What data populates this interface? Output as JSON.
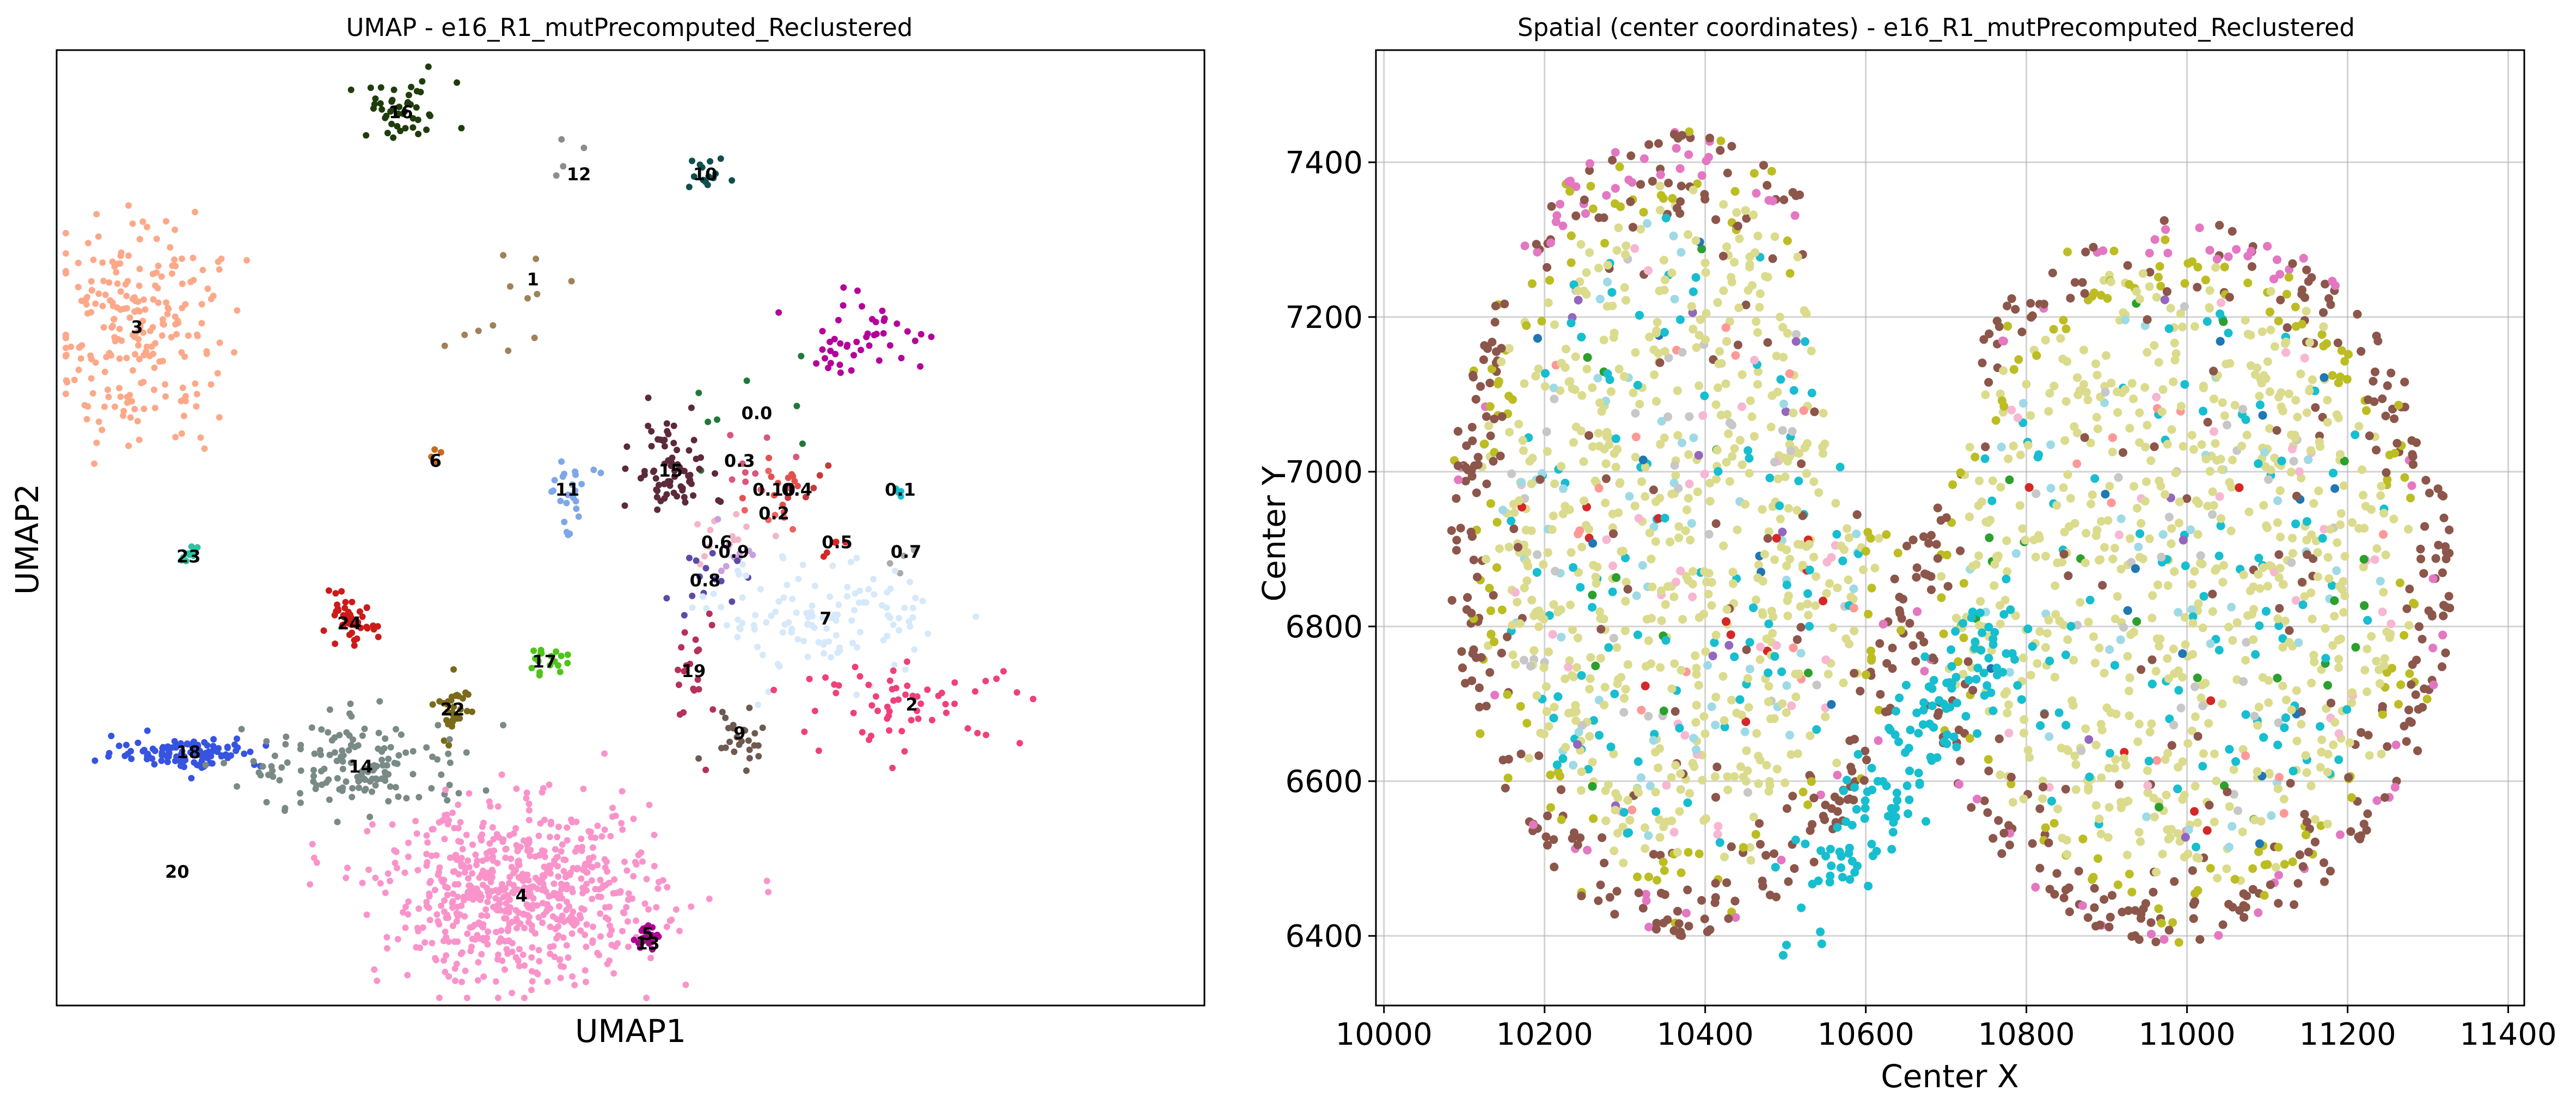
{
  "chart_data": [
    {
      "type": "scatter",
      "title": "UMAP - e16_R1_mutPrecomputed_Reclustered",
      "xlabel": "UMAP1",
      "ylabel": "UMAP2",
      "xlim": [
        0,
        100
      ],
      "ylim": [
        0,
        100
      ],
      "ticks_visible": false,
      "grid": false,
      "cluster_labels": [
        {
          "label": "16",
          "x": 30,
          "y": 93.5,
          "n": 45,
          "sx": 2.4,
          "sy": 1.6,
          "color": "#1f3d0c"
        },
        {
          "label": "12",
          "x": 45.5,
          "y": 87,
          "n": 4,
          "sx": 1.2,
          "sy": 3,
          "color": "#8c8c8c"
        },
        {
          "label": "10",
          "x": 56.5,
          "y": 87,
          "n": 14,
          "sx": 1,
          "sy": 0.8,
          "color": "#0f4f4f"
        },
        {
          "label": "1",
          "x": 41.5,
          "y": 76,
          "n": 6,
          "sx": 1.5,
          "sy": 1.8,
          "color": "#a0825a"
        },
        {
          "label": "3",
          "x": 7,
          "y": 71,
          "n": 230,
          "sx": 3.6,
          "sy": 6,
          "color": "#fca98a"
        },
        {
          "label": "0.0",
          "x": 61,
          "y": 62,
          "n": 8,
          "sx": 3.5,
          "sy": 3,
          "color": "#1f7a3a"
        },
        {
          "label": "6",
          "x": 33,
          "y": 57,
          "n": 5,
          "sx": 0.5,
          "sy": 0.6,
          "color": "#c86a1c"
        },
        {
          "label": "0.3",
          "x": 59.5,
          "y": 57,
          "n": 10,
          "sx": 2.2,
          "sy": 2,
          "color": "#d9577a"
        },
        {
          "label": "15",
          "x": 53.5,
          "y": 56,
          "n": 70,
          "sx": 1.6,
          "sy": 2.8,
          "color": "#5c2a3a"
        },
        {
          "label": "11",
          "x": 44.5,
          "y": 54,
          "n": 25,
          "sx": 1,
          "sy": 1.8,
          "color": "#7fa6e8"
        },
        {
          "label": "0.10",
          "x": 62.5,
          "y": 54,
          "n": 12,
          "sx": 2,
          "sy": 2,
          "color": "#e35050"
        },
        {
          "label": "0.4",
          "x": 64.5,
          "y": 54,
          "n": 6,
          "sx": 1.5,
          "sy": 1.5,
          "color": "#c43a3a"
        },
        {
          "label": "0.1",
          "x": 73.5,
          "y": 54,
          "n": 4,
          "sx": 0.5,
          "sy": 0.5,
          "color": "#17becf"
        },
        {
          "label": "0.2",
          "x": 62.5,
          "y": 51.5,
          "n": 8,
          "sx": 1.2,
          "sy": 1.5,
          "color": "#f06060"
        },
        {
          "label": "0.6",
          "x": 57.5,
          "y": 48.5,
          "n": 14,
          "sx": 2,
          "sy": 2,
          "color": "#f2b6c6"
        },
        {
          "label": "0.9",
          "x": 59,
          "y": 47.5,
          "n": 10,
          "sx": 1.5,
          "sy": 1.5,
          "color": "#c9a0dc"
        },
        {
          "label": "0.5",
          "x": 68,
          "y": 48.5,
          "n": 5,
          "sx": 1,
          "sy": 1,
          "color": "#d62728"
        },
        {
          "label": "0.7",
          "x": 74,
          "y": 47.5,
          "n": 4,
          "sx": 1,
          "sy": 1,
          "color": "#aaaaaa"
        },
        {
          "label": "23",
          "x": 11.5,
          "y": 47,
          "n": 10,
          "sx": 0.5,
          "sy": 0.5,
          "color": "#2ec4a0"
        },
        {
          "label": "0.8",
          "x": 56.5,
          "y": 44.5,
          "n": 14,
          "sx": 1.5,
          "sy": 1.5,
          "color": "#5b4aa8"
        },
        {
          "label": "7",
          "x": 67,
          "y": 40.5,
          "n": 120,
          "sx": 5,
          "sy": 3,
          "color": "#d6e9fa"
        },
        {
          "label": "24",
          "x": 25.5,
          "y": 40,
          "n": 45,
          "sx": 1.2,
          "sy": 1.2,
          "color": "#cc1a1a"
        },
        {
          "label": "17",
          "x": 42.5,
          "y": 36,
          "n": 18,
          "sx": 1,
          "sy": 0.6,
          "color": "#4fc41a"
        },
        {
          "label": "19",
          "x": 55.5,
          "y": 35,
          "n": 20,
          "sx": 1,
          "sy": 4,
          "color": "#b5315a"
        },
        {
          "label": "22",
          "x": 34.5,
          "y": 31,
          "n": 30,
          "sx": 0.8,
          "sy": 2,
          "color": "#7a6a1a"
        },
        {
          "label": "2",
          "x": 74.5,
          "y": 31.5,
          "n": 60,
          "sx": 5,
          "sy": 2,
          "color": "#f0407a"
        },
        {
          "label": "9",
          "x": 59.5,
          "y": 28.5,
          "n": 25,
          "sx": 1.5,
          "sy": 1.5,
          "color": "#6e5a50"
        },
        {
          "label": "18",
          "x": 11.5,
          "y": 26.5,
          "n": 110,
          "sx": 3.2,
          "sy": 0.8,
          "color": "#3654e0"
        },
        {
          "label": "14",
          "x": 26.5,
          "y": 25,
          "n": 150,
          "sx": 5,
          "sy": 2.5,
          "color": "#7a8a86"
        },
        {
          "label": "20",
          "x": 10.5,
          "y": 14,
          "n": 0,
          "sx": 0,
          "sy": 0,
          "color": "#777777"
        },
        {
          "label": "4",
          "x": 40.5,
          "y": 11.5,
          "n": 650,
          "sx": 6,
          "sy": 4.5,
          "color": "#f994cb"
        },
        {
          "label": "5",
          "x": 51.5,
          "y": 7.5,
          "n": 14,
          "sx": 0.8,
          "sy": 0.6,
          "color": "#b3009a"
        },
        {
          "label": "13",
          "x": 51.5,
          "y": 6.5,
          "n": 10,
          "sx": 0.6,
          "sy": 0.5,
          "color": "#9a1080"
        }
      ],
      "extra_groups": [
        {
          "x": 70,
          "y": 70,
          "n": 45,
          "sx": 3,
          "sy": 2,
          "color": "#b3009a"
        },
        {
          "x": 38.5,
          "y": 70,
          "n": 6,
          "sx": 1.5,
          "sy": 1,
          "color": "#a0825a"
        }
      ]
    },
    {
      "type": "scatter",
      "title": "Spatial (center coordinates) - e16_R1_mutPrecomputed_Reclustered",
      "xlabel": "Center X",
      "ylabel": "Center Y",
      "xlim": [
        9990,
        11420
      ],
      "ylim": [
        6310,
        7545
      ],
      "xticks": [
        10000,
        10200,
        10400,
        10600,
        10800,
        11000,
        11200,
        11400
      ],
      "yticks": [
        6400,
        6600,
        6800,
        7000,
        7200,
        7400
      ],
      "grid": true,
      "colors": {
        "outer": "#8c564b",
        "edge": "#e377c2",
        "bright": "#bcbd22",
        "pale": "#dbdb8d",
        "cyan": "#17becf",
        "lightblue": "#9edae5",
        "gray": "#c7c7c7",
        "pink": "#f7b6d2",
        "salmon": "#ff9896",
        "green": "#2ca02c",
        "red": "#d62728",
        "orange": "#ff7f0e",
        "blue": "#1f77b4",
        "purple": "#9467bd"
      }
    }
  ]
}
